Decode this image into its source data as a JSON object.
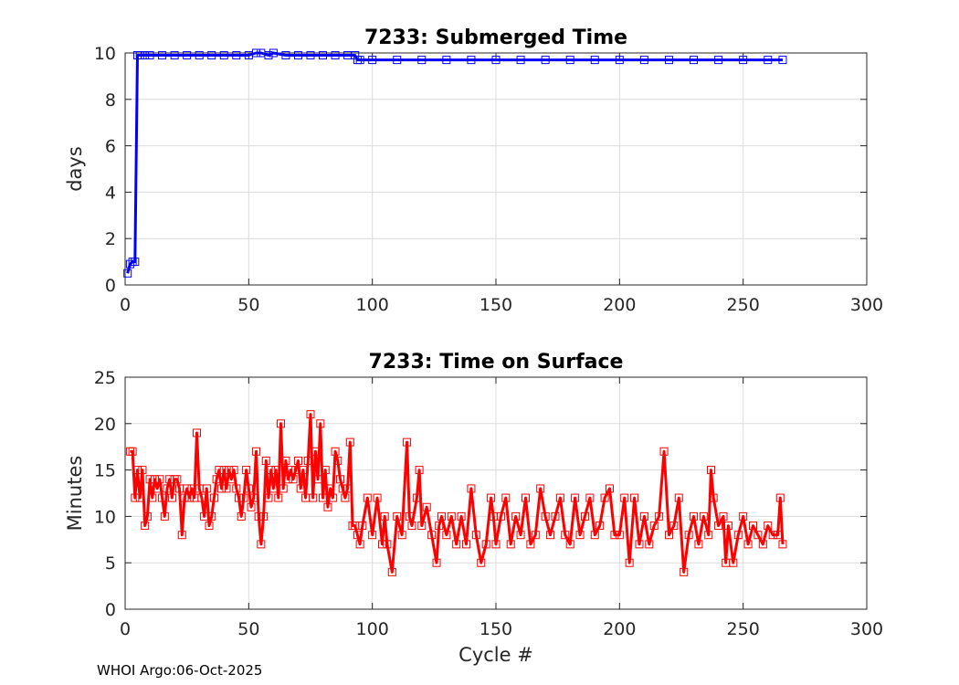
{
  "footer": "WHOI Argo:06-Oct-2025",
  "chart_data": [
    {
      "type": "line",
      "title": "7233: Submerged Time",
      "xlabel": "",
      "ylabel": "days",
      "xlim": [
        0,
        300
      ],
      "ylim": [
        0,
        10
      ],
      "xticks": [
        0,
        50,
        100,
        150,
        200,
        250,
        300
      ],
      "yticks": [
        0,
        2,
        4,
        6,
        8,
        10
      ],
      "grid": true,
      "color": "#0000ff",
      "marker": "square",
      "series": [
        {
          "x": [
            1,
            2,
            3,
            4,
            5,
            6,
            8,
            10,
            15,
            20,
            25,
            30,
            35,
            40,
            45,
            50,
            53,
            55,
            58,
            60,
            65,
            70,
            75,
            80,
            85,
            90,
            93,
            94,
            95,
            100,
            110,
            120,
            130,
            140,
            150,
            160,
            170,
            180,
            190,
            200,
            210,
            220,
            230,
            240,
            250,
            260,
            266
          ],
          "y": [
            0.5,
            0.9,
            1.0,
            1.0,
            9.9,
            9.9,
            9.9,
            9.9,
            9.9,
            9.9,
            9.9,
            9.9,
            9.9,
            9.9,
            9.9,
            9.9,
            10.0,
            10.0,
            9.9,
            10.0,
            9.9,
            9.9,
            9.9,
            9.9,
            9.9,
            9.9,
            9.9,
            9.7,
            9.7,
            9.7,
            9.7,
            9.7,
            9.7,
            9.7,
            9.7,
            9.7,
            9.7,
            9.7,
            9.7,
            9.7,
            9.7,
            9.7,
            9.7,
            9.7,
            9.7,
            9.7,
            9.7
          ]
        }
      ]
    },
    {
      "type": "line",
      "title": "7233: Time on Surface",
      "xlabel": "Cycle #",
      "ylabel": "Minutes",
      "xlim": [
        0,
        300
      ],
      "ylim": [
        0,
        25
      ],
      "xticks": [
        0,
        50,
        100,
        150,
        200,
        250,
        300
      ],
      "yticks": [
        0,
        5,
        10,
        15,
        20,
        25
      ],
      "grid": true,
      "color": "#ff0000",
      "marker": "square",
      "series": [
        {
          "x": [
            2,
            3,
            4,
            5,
            6,
            7,
            8,
            9,
            10,
            11,
            12,
            13,
            14,
            15,
            16,
            17,
            18,
            19,
            20,
            21,
            22,
            23,
            24,
            25,
            26,
            27,
            28,
            29,
            30,
            31,
            32,
            33,
            34,
            35,
            36,
            37,
            38,
            39,
            40,
            41,
            42,
            43,
            44,
            45,
            46,
            47,
            48,
            49,
            50,
            51,
            52,
            53,
            54,
            55,
            56,
            57,
            58,
            59,
            60,
            61,
            62,
            63,
            64,
            65,
            66,
            67,
            68,
            69,
            70,
            71,
            72,
            73,
            74,
            75,
            76,
            77,
            78,
            79,
            80,
            81,
            82,
            83,
            84,
            85,
            86,
            87,
            88,
            89,
            90,
            91,
            92,
            93,
            94,
            95,
            96,
            98,
            100,
            102,
            104,
            105,
            106,
            108,
            110,
            112,
            114,
            115,
            116,
            118,
            119,
            120,
            122,
            124,
            126,
            127,
            128,
            130,
            132,
            134,
            136,
            138,
            140,
            142,
            144,
            146,
            148,
            149,
            150,
            152,
            154,
            156,
            158,
            160,
            162,
            164,
            166,
            168,
            170,
            172,
            174,
            176,
            178,
            180,
            182,
            184,
            186,
            188,
            190,
            192,
            194,
            196,
            198,
            200,
            202,
            204,
            206,
            208,
            210,
            212,
            214,
            216,
            218,
            220,
            222,
            224,
            226,
            228,
            230,
            232,
            234,
            236,
            237,
            238,
            240,
            242,
            243,
            244,
            246,
            248,
            250,
            252,
            254,
            256,
            258,
            260,
            262,
            264,
            265,
            266
          ],
          "y": [
            17,
            17,
            12,
            15,
            12,
            15,
            9,
            10,
            14,
            12,
            14,
            13,
            14,
            12,
            10,
            13,
            14,
            12,
            14,
            14,
            13,
            8,
            12,
            13,
            12,
            13,
            12,
            19,
            13,
            12,
            10,
            13,
            9,
            10,
            12,
            14,
            15,
            13,
            15,
            13,
            15,
            14,
            15,
            13,
            12,
            10,
            12,
            15,
            13,
            11,
            12,
            17,
            10,
            7,
            10,
            16,
            12,
            15,
            13,
            15,
            12,
            20,
            13,
            16,
            14,
            15,
            14,
            15,
            16,
            13,
            15,
            12,
            16,
            21,
            12,
            17,
            14,
            20,
            12,
            15,
            11,
            13,
            12,
            17,
            16,
            14,
            13,
            12,
            13,
            18,
            9,
            9,
            8,
            7,
            9,
            12,
            8,
            12,
            7,
            10,
            7,
            4,
            10,
            8,
            18,
            10,
            9,
            12,
            15,
            9,
            11,
            8,
            5,
            9,
            10,
            8,
            10,
            7,
            10,
            7,
            13,
            8,
            5,
            7,
            12,
            10,
            7,
            10,
            12,
            7,
            10,
            8,
            12,
            7,
            8,
            13,
            10,
            8,
            10,
            12,
            8,
            7,
            12,
            8,
            10,
            12,
            8,
            9,
            12,
            13,
            8,
            8,
            12,
            5,
            12,
            7,
            10,
            7,
            9,
            10,
            17,
            8,
            9,
            12,
            4,
            8,
            10,
            7,
            10,
            8,
            15,
            12,
            9,
            10,
            5,
            9,
            5,
            8,
            10,
            7,
            9,
            8,
            7,
            9,
            8,
            8,
            12,
            7
          ]
        }
      ]
    }
  ]
}
